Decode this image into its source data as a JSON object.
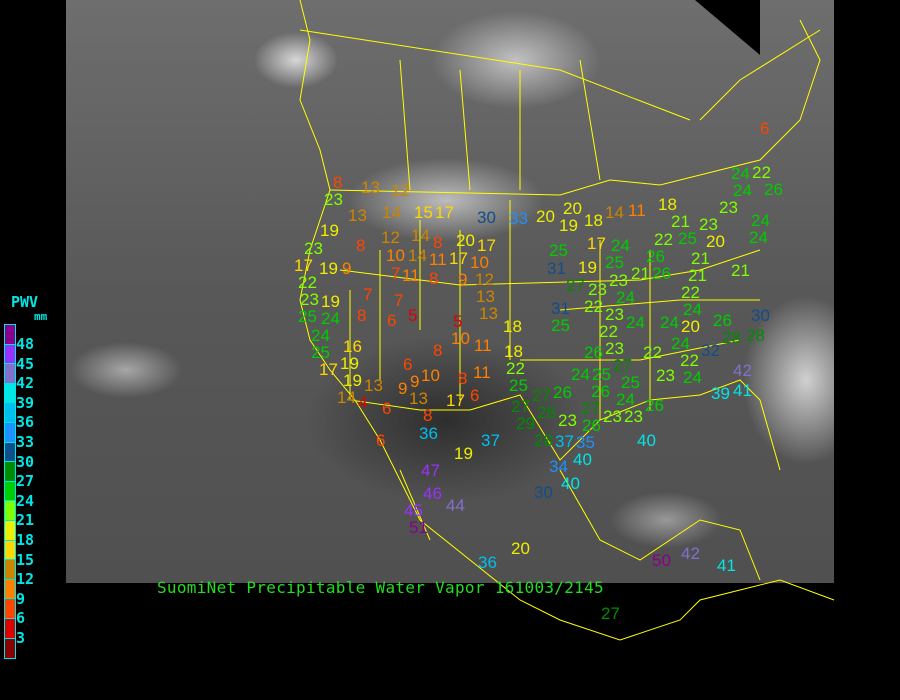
{
  "title": "SuomiNet Precipitable Water Vapor 161003/2145",
  "legend": {
    "title": "PWV",
    "unit": "mm",
    "ticks": [
      "48",
      "45",
      "42",
      "39",
      "36",
      "33",
      "30",
      "27",
      "24",
      "21",
      "18",
      "15",
      "12",
      "9",
      "6",
      "3"
    ],
    "colors": [
      "#8b008b",
      "#9932ff",
      "#8470cc",
      "#00e5e5",
      "#00bfee",
      "#1e90ff",
      "#104e8b",
      "#008b00",
      "#00cd00",
      "#7fff00",
      "#eeee00",
      "#ffd700",
      "#cd8500",
      "#ff8000",
      "#ff4500",
      "#dd0000",
      "#8b0000"
    ]
  },
  "map": {
    "border_color": "#ffff00",
    "station_pwv_mm": [
      8,
      13,
      12,
      23,
      13,
      14,
      15,
      17,
      30,
      33,
      19,
      8,
      12,
      14,
      8,
      20,
      10,
      14,
      11,
      17,
      17,
      23,
      17,
      19,
      9,
      10,
      7,
      11,
      8,
      9,
      12,
      13,
      7,
      7,
      13,
      8,
      6,
      5,
      5,
      10,
      8,
      11,
      19,
      22,
      23,
      25,
      24,
      24,
      25,
      16,
      17,
      19,
      19,
      9,
      6,
      10,
      9,
      8,
      11,
      6,
      17,
      13,
      8,
      14,
      13,
      4,
      6,
      18,
      18,
      6,
      36,
      47,
      46,
      44,
      45,
      51,
      19,
      37,
      20,
      36,
      50,
      42,
      41,
      27,
      6,
      20,
      20,
      19,
      18,
      14,
      11,
      18,
      17,
      24,
      26,
      21,
      25,
      31,
      19,
      25,
      26,
      22,
      21,
      25,
      23,
      20,
      21,
      21,
      21,
      23,
      24,
      26,
      22,
      24,
      24,
      24,
      27,
      23,
      23,
      24,
      22,
      23,
      31,
      25,
      22,
      24,
      22,
      24,
      24,
      23,
      26,
      20,
      24,
      26,
      28,
      28,
      30,
      22,
      22,
      32,
      24,
      23,
      24,
      27,
      25,
      25,
      26,
      23,
      39,
      41,
      42,
      27,
      26,
      28,
      25,
      22,
      27,
      29,
      23,
      27,
      24,
      26,
      26,
      37,
      28,
      34,
      40,
      40,
      40,
      30,
      23,
      35
    ]
  }
}
